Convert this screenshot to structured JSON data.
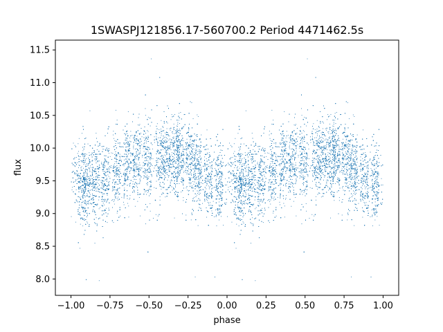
{
  "chart_data": {
    "type": "scatter",
    "title": "1SWASPJ121856.17-560700.2 Period 4471462.5s",
    "xlabel": "phase",
    "ylabel": "flux",
    "xlim": [
      -1.1,
      1.1
    ],
    "ylim": [
      7.75,
      11.65
    ],
    "xticks": [
      -1.0,
      -0.75,
      -0.5,
      -0.25,
      0.0,
      0.25,
      0.5,
      0.75,
      1.0
    ],
    "xtick_labels": [
      "−1.00",
      "−0.75",
      "−0.50",
      "−0.25",
      "0.00",
      "0.25",
      "0.50",
      "0.75",
      "1.00"
    ],
    "yticks": [
      8.0,
      8.5,
      9.0,
      9.5,
      10.0,
      10.5,
      11.0,
      11.5
    ],
    "ytick_labels": [
      "8.0",
      "8.5",
      "9.0",
      "9.5",
      "10.0",
      "10.5",
      "11.0",
      "11.5"
    ],
    "grid": false,
    "marker_color": "#1f77b4",
    "phase_range": [
      -1.0,
      1.0
    ],
    "light_curve_profile": {
      "phase": [
        0.0,
        0.1,
        0.2,
        0.3,
        0.4,
        0.5,
        0.6,
        0.7,
        0.8,
        0.9,
        1.0
      ],
      "flux": [
        9.5,
        9.42,
        9.48,
        9.62,
        9.78,
        9.82,
        9.85,
        9.9,
        9.7,
        9.5,
        9.5
      ]
    },
    "typical_scatter": 0.3,
    "observation_columns": [
      0.07,
      0.1,
      0.16,
      0.22,
      0.29,
      0.36,
      0.42,
      0.49,
      0.57,
      0.62,
      0.67,
      0.7,
      0.76,
      0.81,
      0.88,
      0.95
    ]
  }
}
